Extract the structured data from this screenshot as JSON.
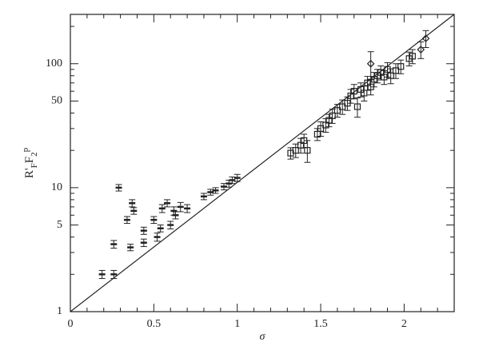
{
  "chart_data": {
    "type": "scatter",
    "x_label": "σ",
    "y_label_parts": [
      "R'",
      "F",
      "F",
      "2",
      "p"
    ],
    "xlim": [
      0,
      2.3
    ],
    "ylim": [
      1,
      250
    ],
    "log_y": true,
    "xticks": [
      0,
      0.5,
      1,
      1.5,
      2
    ],
    "yticks": [
      1,
      5,
      10,
      50,
      100
    ],
    "yminor": [
      2,
      3,
      4,
      6,
      7,
      8,
      9,
      20,
      30,
      40,
      60,
      70,
      80,
      90,
      200
    ],
    "xminor": [
      0.1,
      0.2,
      0.3,
      0.4,
      0.6,
      0.7,
      0.8,
      0.9,
      1.1,
      1.2,
      1.3,
      1.4,
      1.6,
      1.7,
      1.8,
      1.9,
      2.1,
      2.2
    ],
    "fit_line": {
      "x": [
        0,
        2.3
      ],
      "y": [
        1,
        250
      ]
    },
    "color": "#222",
    "series": [
      {
        "marker": "cross",
        "x": [
          0.19,
          0.26,
          0.26,
          0.29,
          0.34,
          0.36,
          0.37,
          0.38,
          0.44,
          0.44,
          0.5,
          0.52,
          0.54,
          0.55,
          0.58,
          0.6,
          0.62,
          0.63,
          0.66,
          0.7,
          0.8,
          0.84,
          0.87,
          0.92,
          0.95,
          0.97,
          1.0
        ],
        "values": [
          2.0,
          2.0,
          3.5,
          10,
          5.5,
          3.3,
          7.5,
          6.5,
          4.5,
          3.6,
          5.5,
          4.0,
          4.7,
          6.8,
          7.5,
          5.0,
          6.5,
          6.0,
          7.0,
          6.8,
          8.5,
          9.2,
          9.5,
          10.2,
          10.8,
          11.5,
          12
        ],
        "errors": [
          0.15,
          0.15,
          0.25,
          0.6,
          0.35,
          0.2,
          0.5,
          0.4,
          0.3,
          0.25,
          0.35,
          0.3,
          0.3,
          0.5,
          0.5,
          0.35,
          0.5,
          0.4,
          0.6,
          0.5,
          0.5,
          0.5,
          0.5,
          0.6,
          0.7,
          0.7,
          0.8
        ]
      },
      {
        "marker": "square",
        "x": [
          1.32,
          1.35,
          1.38,
          1.4,
          1.42,
          1.48,
          1.5,
          1.53,
          1.55,
          1.57,
          1.6,
          1.63,
          1.66,
          1.68,
          1.7,
          1.72,
          1.74,
          1.76,
          1.78,
          1.8,
          1.82,
          1.84,
          1.86,
          1.88,
          1.9,
          1.92,
          1.95,
          1.98,
          2.03,
          2.05
        ],
        "values": [
          19,
          20,
          22,
          24,
          20,
          27,
          30,
          32,
          35,
          38,
          42,
          45,
          48,
          55,
          60,
          45,
          62,
          58,
          70,
          65,
          75,
          80,
          85,
          78,
          90,
          80,
          88,
          95,
          110,
          115
        ],
        "errors": [
          2,
          2.5,
          3,
          3,
          4,
          3,
          4,
          4,
          4,
          5,
          5,
          6,
          6,
          7,
          8,
          8,
          8,
          8,
          9,
          9,
          10,
          10,
          11,
          10,
          12,
          11,
          12,
          12,
          14,
          15
        ]
      },
      {
        "marker": "diamond",
        "x": [
          1.8,
          2.1,
          2.13
        ],
        "values": [
          100,
          130,
          160
        ],
        "errors": [
          25,
          20,
          25
        ]
      }
    ]
  }
}
